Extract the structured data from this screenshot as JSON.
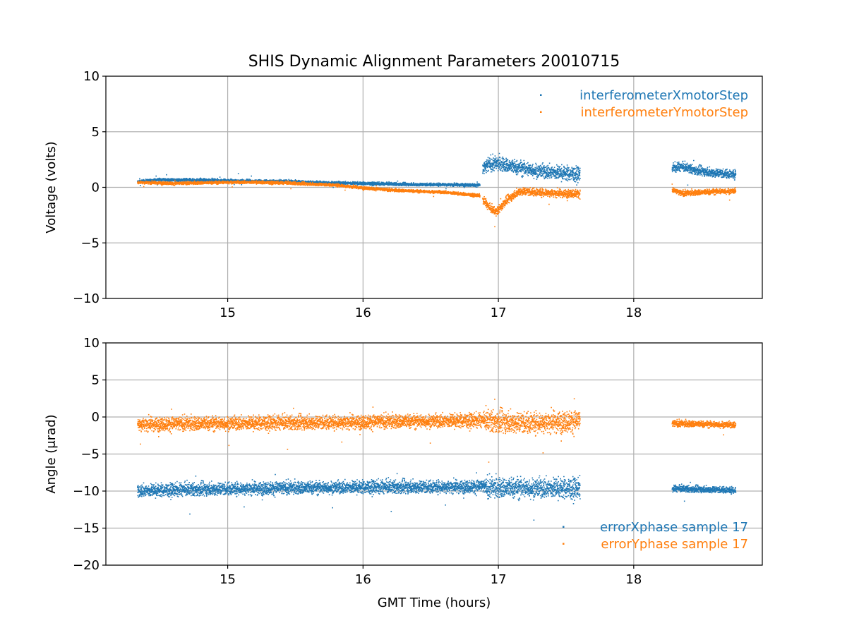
{
  "chart_data": [
    {
      "type": "scatter",
      "title": "SHIS Dynamic Alignment Parameters 20010715",
      "xlabel": "",
      "ylabel": "Voltage (volts)",
      "xlim": [
        14.1,
        18.95
      ],
      "ylim": [
        -10,
        10
      ],
      "xticks": [
        15,
        16,
        17,
        18
      ],
      "yticks": [
        -10,
        -5,
        0,
        5,
        10
      ],
      "grid": true,
      "legend_position": "top-right",
      "series": [
        {
          "name": "interferometerXmotorStep",
          "color": "#1f77b4",
          "segments": [
            {
              "x_start": 14.33,
              "x_end": 16.86,
              "x": [
                14.33,
                14.5,
                14.6,
                14.8,
                15.0,
                15.2,
                15.4,
                15.6,
                15.8,
                16.0,
                16.2,
                16.4,
                16.6,
                16.86
              ],
              "y": [
                0.55,
                0.75,
                0.7,
                0.7,
                0.65,
                0.6,
                0.6,
                0.5,
                0.45,
                0.4,
                0.35,
                0.3,
                0.3,
                0.25
              ],
              "noise": 0.18
            },
            {
              "x_start": 16.88,
              "x_end": 17.6,
              "x": [
                16.88,
                16.92,
                17.0,
                17.1,
                17.2,
                17.3,
                17.4,
                17.5,
                17.6
              ],
              "y": [
                1.6,
                2.1,
                2.2,
                1.9,
                1.7,
                1.5,
                1.4,
                1.3,
                1.2
              ],
              "noise": 0.9
            },
            {
              "x_start": 18.28,
              "x_end": 18.75,
              "x": [
                18.28,
                18.35,
                18.45,
                18.55,
                18.65,
                18.75
              ],
              "y": [
                1.8,
                1.9,
                1.6,
                1.4,
                1.3,
                1.2
              ],
              "noise": 0.55
            }
          ]
        },
        {
          "name": "interferometerYmotorStep",
          "color": "#ff7f0e",
          "segments": [
            {
              "x_start": 14.33,
              "x_end": 16.86,
              "x": [
                14.33,
                14.5,
                14.6,
                14.8,
                15.0,
                15.2,
                15.4,
                15.6,
                15.8,
                16.0,
                16.2,
                16.4,
                16.6,
                16.86
              ],
              "y": [
                0.5,
                0.45,
                0.4,
                0.45,
                0.5,
                0.5,
                0.45,
                0.35,
                0.25,
                0.0,
                -0.2,
                -0.3,
                -0.4,
                -0.7
              ],
              "noise": 0.18
            },
            {
              "x_start": 16.88,
              "x_end": 17.6,
              "x": [
                16.88,
                16.93,
                16.98,
                17.05,
                17.15,
                17.3,
                17.45,
                17.6
              ],
              "y": [
                -1.0,
                -1.8,
                -2.2,
                -1.2,
                -0.3,
                -0.4,
                -0.5,
                -0.5
              ],
              "noise": 0.5
            },
            {
              "x_start": 18.28,
              "x_end": 18.75,
              "x": [
                18.28,
                18.35,
                18.5,
                18.65,
                18.75
              ],
              "y": [
                -0.2,
                -0.5,
                -0.4,
                -0.3,
                -0.3
              ],
              "noise": 0.35
            }
          ]
        }
      ]
    },
    {
      "type": "scatter",
      "title": "",
      "xlabel": "GMT Time (hours)",
      "ylabel": "Angle (μrad)",
      "xlim": [
        14.1,
        18.95
      ],
      "ylim": [
        -20,
        10
      ],
      "xticks": [
        15,
        16,
        17,
        18
      ],
      "yticks": [
        -20,
        -15,
        -10,
        -5,
        0,
        5,
        10
      ],
      "grid": true,
      "legend_position": "bottom-right",
      "series": [
        {
          "name": "errorXphase sample 17",
          "color": "#1f77b4",
          "segments": [
            {
              "x_start": 14.33,
              "x_end": 16.9,
              "x": [
                14.33,
                15.0,
                16.0,
                16.9
              ],
              "y": [
                -9.9,
                -9.6,
                -9.4,
                -9.3
              ],
              "noise": 1.2
            },
            {
              "x_start": 16.9,
              "x_end": 17.6,
              "x": [
                16.9,
                17.2,
                17.6
              ],
              "y": [
                -9.5,
                -9.5,
                -9.6
              ],
              "noise": 1.9
            },
            {
              "x_start": 18.28,
              "x_end": 18.75,
              "x": [
                18.28,
                18.75
              ],
              "y": [
                -9.6,
                -9.8
              ],
              "noise": 0.6
            }
          ]
        },
        {
          "name": "errorYphase sample 17",
          "color": "#ff7f0e",
          "segments": [
            {
              "x_start": 14.33,
              "x_end": 16.9,
              "x": [
                14.33,
                15.0,
                16.0,
                16.9
              ],
              "y": [
                -0.9,
                -0.8,
                -0.6,
                -0.4
              ],
              "noise": 1.3
            },
            {
              "x_start": 16.9,
              "x_end": 17.6,
              "x": [
                16.9,
                17.2,
                17.6
              ],
              "y": [
                -0.5,
                -0.7,
                -0.5
              ],
              "noise": 2.0
            },
            {
              "x_start": 18.28,
              "x_end": 18.75,
              "x": [
                18.28,
                18.75
              ],
              "y": [
                -0.8,
                -1.0
              ],
              "noise": 0.6
            }
          ]
        }
      ]
    }
  ]
}
